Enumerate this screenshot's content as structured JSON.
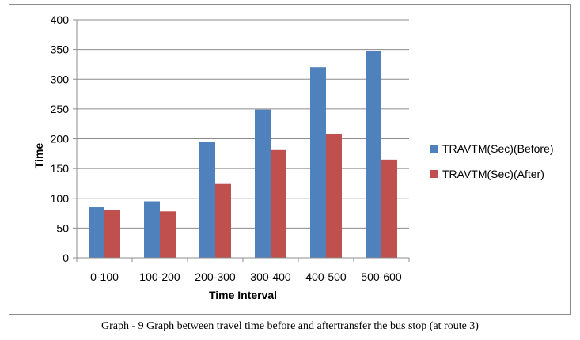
{
  "caption": "Graph - 9 Graph between travel time before and aftertransfer the bus stop (at route 3)",
  "chart_data": {
    "type": "bar",
    "categories": [
      "0-100",
      "100-200",
      "200-300",
      "300-400",
      "400-500",
      "500-600"
    ],
    "series": [
      {
        "name": "TRAVTM(Sec)(Before)",
        "color": "#4f81bd",
        "values": [
          85,
          95,
          194,
          249,
          320,
          347
        ]
      },
      {
        "name": "TRAVTM(Sec)(After)",
        "color": "#c0504d",
        "values": [
          80,
          78,
          124,
          181,
          208,
          165
        ]
      }
    ],
    "title": "",
    "xlabel": "Time Interval",
    "ylabel": "Time",
    "ylim": [
      0,
      400
    ],
    "yticks": [
      0,
      50,
      100,
      150,
      200,
      250,
      300,
      350,
      400
    ],
    "grid": true,
    "legend": "right"
  }
}
